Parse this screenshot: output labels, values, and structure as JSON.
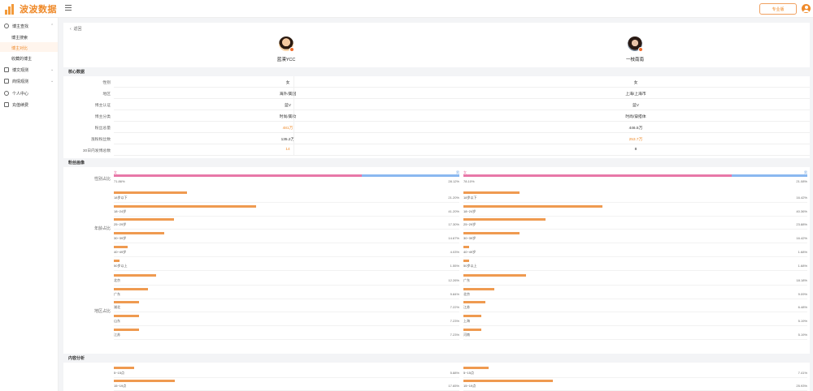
{
  "header": {
    "logo_text": "波波数据",
    "pro_button": "专业版",
    "accent": "#ef8a2a"
  },
  "sidebar": {
    "items": [
      {
        "label": "博主查找",
        "icon": "search-circle-icon",
        "chevron": "⌃"
      },
      {
        "label": "博文观测",
        "icon": "chart-icon",
        "chevron": "⌄"
      },
      {
        "label": "商情观测",
        "icon": "store-icon",
        "chevron": "⌄"
      },
      {
        "label": "个人中心",
        "icon": "user-icon",
        "chevron": ""
      },
      {
        "label": "充值续费",
        "icon": "wallet-icon",
        "chevron": ""
      }
    ],
    "sub_items": [
      {
        "label": "博主搜索",
        "active": false
      },
      {
        "label": "博主对比",
        "active": true
      },
      {
        "label": "收藏的博主",
        "active": false
      }
    ]
  },
  "back_label": "返回",
  "bloggers": [
    {
      "name": "蓝漠YCC"
    },
    {
      "name": "一枝南南"
    }
  ],
  "sections": {
    "core": "核心数据",
    "fans": "粉丝画像",
    "content": "内容分析"
  },
  "core_rows": [
    {
      "label": "性别",
      "a": "女",
      "b": "女",
      "highlight": ""
    },
    {
      "label": "地区",
      "a": "海外/美国",
      "b": "上海/上海市",
      "highlight": ""
    },
    {
      "label": "博主认证",
      "a": "蓝V",
      "b": "蓝V",
      "highlight": ""
    },
    {
      "label": "博主分类",
      "a": "时尚/美妆",
      "b": "时尚/穿搭体",
      "highlight": ""
    },
    {
      "label": "粉丝总量",
      "a": "481万",
      "b": "446.5万",
      "highlight": "a"
    },
    {
      "label": "涨粉粉丝数",
      "a": "135.2万",
      "b": "253.7万",
      "highlight": "b"
    },
    {
      "label": "30日内发博总数",
      "a": "14",
      "b": "8",
      "highlight": "a"
    }
  ],
  "fans": {
    "gender_label": "性别占比",
    "age_label": "年龄占比",
    "region_label": "地区占比",
    "gender": [
      {
        "female_tag": "女",
        "male_tag": "男",
        "female_pct": 71.86,
        "female_text": "71.86%",
        "male_text": "28.12%"
      },
      {
        "female_tag": "女",
        "male_tag": "男",
        "female_pct": 78.1,
        "female_text": "78.10%",
        "male_text": "21.08%"
      }
    ],
    "age": [
      [
        {
          "name": "18岁以下",
          "pct": 21.2,
          "text": "21.20%"
        },
        {
          "name": "18~24岁",
          "pct": 41.2,
          "text": "41.20%"
        },
        {
          "name": "25~29岁",
          "pct": 17.3,
          "text": "17.30%"
        },
        {
          "name": "30~39岁",
          "pct": 14.67,
          "text": "14.67%"
        },
        {
          "name": "40~49岁",
          "pct": 4.03,
          "text": "4.03%"
        },
        {
          "name": "50岁以上",
          "pct": 1.55,
          "text": "1.55%"
        }
      ],
      [
        {
          "name": "18岁以下",
          "pct": 16.42,
          "text": "16.42%"
        },
        {
          "name": "18~24岁",
          "pct": 40.36,
          "text": "40.36%"
        },
        {
          "name": "25~29岁",
          "pct": 23.88,
          "text": "23.88%"
        },
        {
          "name": "30~39岁",
          "pct": 16.42,
          "text": "16.42%"
        },
        {
          "name": "40~49岁",
          "pct": 1.68,
          "text": "1.68%"
        },
        {
          "name": "50岁以上",
          "pct": 1.68,
          "text": "1.68%"
        }
      ]
    ],
    "region": [
      [
        {
          "name": "北京",
          "pct": 12.26,
          "text": "12.26%"
        },
        {
          "name": "广东",
          "pct": 9.84,
          "text": "9.84%"
        },
        {
          "name": "湖北",
          "pct": 7.22,
          "text": "7.22%"
        },
        {
          "name": "山东",
          "pct": 7.23,
          "text": "7.23%"
        },
        {
          "name": "江苏",
          "pct": 7.23,
          "text": "7.23%"
        }
      ],
      [
        {
          "name": "广东",
          "pct": 18.18,
          "text": "18.18%"
        },
        {
          "name": "北京",
          "pct": 9.09,
          "text": "9.09%"
        },
        {
          "name": "江苏",
          "pct": 6.48,
          "text": "6.48%"
        },
        {
          "name": "上海",
          "pct": 5.19,
          "text": "5.19%"
        },
        {
          "name": "河南",
          "pct": 5.19,
          "text": "5.19%"
        }
      ]
    ]
  },
  "content_rows": [
    [
      {
        "name": "5~15点",
        "pct": 5.88,
        "text": "5.88%"
      },
      {
        "name": "15~19点",
        "pct": 17.65,
        "text": "17.65%"
      }
    ],
    [
      {
        "name": "5~15点",
        "pct": 7.41,
        "text": "7.41%"
      },
      {
        "name": "15~19点",
        "pct": 25.93,
        "text": "25.93%"
      }
    ]
  ]
}
